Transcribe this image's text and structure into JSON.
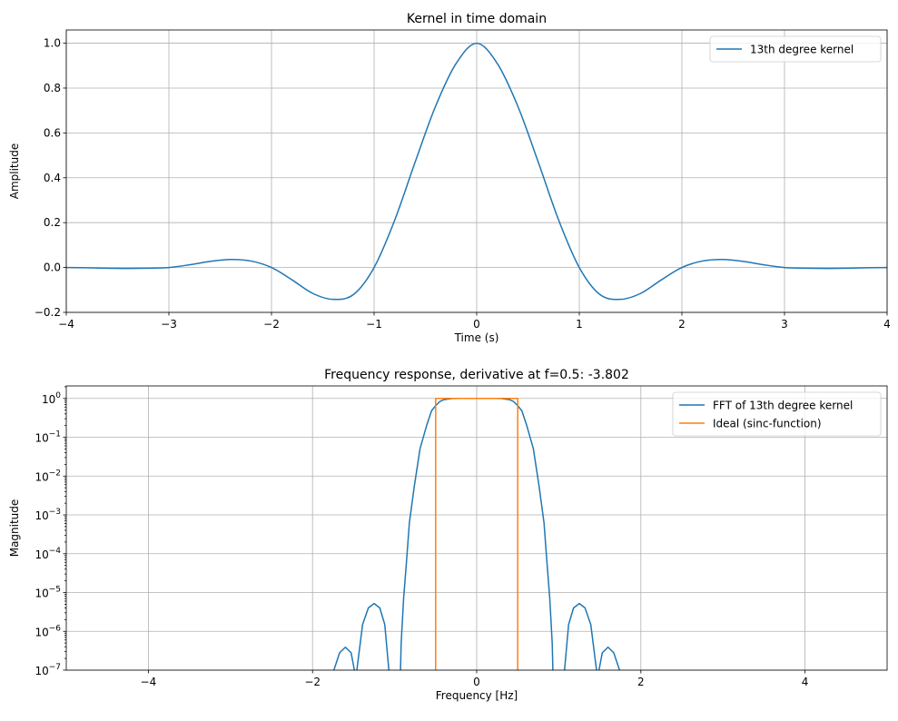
{
  "chart_data": [
    {
      "type": "line",
      "title": "Kernel in time domain",
      "xlabel": "Time (s)",
      "ylabel": "Amplitude",
      "xlim": [
        -4,
        4
      ],
      "ylim": [
        -0.2,
        1.059
      ],
      "grid": true,
      "legend_position": "top-right",
      "xticks": [
        -4,
        -3,
        -2,
        -1,
        0,
        1,
        2,
        3,
        4
      ],
      "xtick_labels": [
        "−4",
        "−3",
        "−2",
        "−1",
        "0",
        "1",
        "2",
        "3",
        "4"
      ],
      "yticks": [
        -0.2,
        0.0,
        0.2,
        0.4,
        0.6,
        0.8,
        1.0
      ],
      "ytick_labels": [
        "−0.2",
        "0.0",
        "0.2",
        "0.4",
        "0.6",
        "0.8",
        "1.0"
      ],
      "series": [
        {
          "name": "13th degree kernel",
          "color": "#1f77b4",
          "x": [
            -4,
            -3.8,
            -3.6,
            -3.4,
            -3.2,
            -3,
            -2.8,
            -2.6,
            -2.4,
            -2.2,
            -2,
            -1.8,
            -1.6,
            -1.4,
            -1.2,
            -1,
            -0.8,
            -0.6,
            -0.4,
            -0.2,
            0,
            0.2,
            0.4,
            0.6,
            0.8,
            1,
            1.2,
            1.4,
            1.6,
            1.8,
            2,
            2.2,
            2.4,
            2.6,
            2.8,
            3,
            3.2,
            3.4,
            3.6,
            3.8,
            4
          ],
          "y": [
            0,
            -0.001,
            -0.003,
            -0.004,
            -0.003,
            0,
            0.012,
            0.027,
            0.036,
            0.029,
            0,
            -0.055,
            -0.115,
            -0.142,
            -0.12,
            0,
            0.21,
            0.47,
            0.72,
            0.91,
            1,
            0.91,
            0.72,
            0.47,
            0.21,
            0,
            -0.12,
            -0.142,
            -0.115,
            -0.055,
            0,
            0.029,
            0.036,
            0.027,
            0.012,
            0,
            -0.003,
            -0.004,
            -0.003,
            -0.001,
            0
          ]
        }
      ]
    },
    {
      "type": "line",
      "title": "Frequency response, derivative at f=0.5: -3.802",
      "xlabel": "Frequency [Hz]",
      "ylabel": "Magnitude",
      "xlim": [
        -5,
        5
      ],
      "ylim": [
        1e-07,
        2.1
      ],
      "yscale": "log",
      "grid": true,
      "legend_position": "top-right",
      "xticks": [
        -4,
        -2,
        0,
        2,
        4
      ],
      "xtick_labels": [
        "−4",
        "−2",
        "0",
        "2",
        "4"
      ],
      "yticks": [
        1,
        0.1,
        0.01,
        0.001,
        0.0001,
        1e-05,
        1e-06,
        1e-07
      ],
      "ytick_exponents": [
        "0",
        "−1",
        "−2",
        "−3",
        "−4",
        "−5",
        "−6",
        "−7"
      ],
      "ytick_base": "10",
      "series": [
        {
          "name": "FFT of 13th degree kernel",
          "color": "#1f77b4",
          "x": [
            -1.8,
            -1.74,
            -1.67,
            -1.6,
            -1.53,
            -1.49,
            -1.475,
            -1.46,
            -1.39,
            -1.32,
            -1.25,
            -1.18,
            -1.12,
            -1.07,
            -1.0,
            -0.94,
            -0.92,
            -0.89,
            -0.85,
            -0.82,
            -0.76,
            -0.69,
            -0.61,
            -0.55,
            -0.5,
            -0.45,
            -0.4,
            -0.3,
            -0.2,
            0,
            0.2,
            0.3,
            0.4,
            0.45,
            0.5,
            0.55,
            0.61,
            0.69,
            0.76,
            0.82,
            0.85,
            0.89,
            0.92,
            0.94,
            1.0,
            1.07,
            1.12,
            1.18,
            1.25,
            1.32,
            1.39,
            1.46,
            1.475,
            1.49,
            1.53,
            1.6,
            1.67,
            1.74,
            1.8
          ],
          "y": [
            1e-09,
            1e-07,
            2.8e-07,
            3.9e-07,
            2.8e-07,
            1e-07,
            1e-09,
            1e-07,
            1.5e-06,
            4e-06,
            5.2e-06,
            4e-06,
            1.5e-06,
            1e-07,
            1e-09,
            1e-08,
            5e-07,
            7.2e-06,
            8.7e-05,
            0.00063,
            0.0055,
            0.051,
            0.2,
            0.48,
            0.65,
            0.83,
            0.93,
            0.995,
            1.0,
            1.0,
            1.0,
            0.995,
            0.93,
            0.83,
            0.65,
            0.48,
            0.2,
            0.051,
            0.0055,
            0.00063,
            8.7e-05,
            7.2e-06,
            5e-07,
            1e-08,
            1e-09,
            1e-07,
            1.5e-06,
            4e-06,
            5.2e-06,
            4e-06,
            1.5e-06,
            1e-07,
            1e-09,
            1e-07,
            2.8e-07,
            3.9e-07,
            2.8e-07,
            1e-07,
            1e-09
          ]
        },
        {
          "name": "Ideal (sinc-function)",
          "color": "#ff7f0e",
          "x": [
            -5,
            -0.5,
            -0.5,
            0.5,
            0.5,
            5
          ],
          "y": [
            0,
            0,
            1,
            1,
            0,
            0
          ]
        }
      ]
    }
  ]
}
